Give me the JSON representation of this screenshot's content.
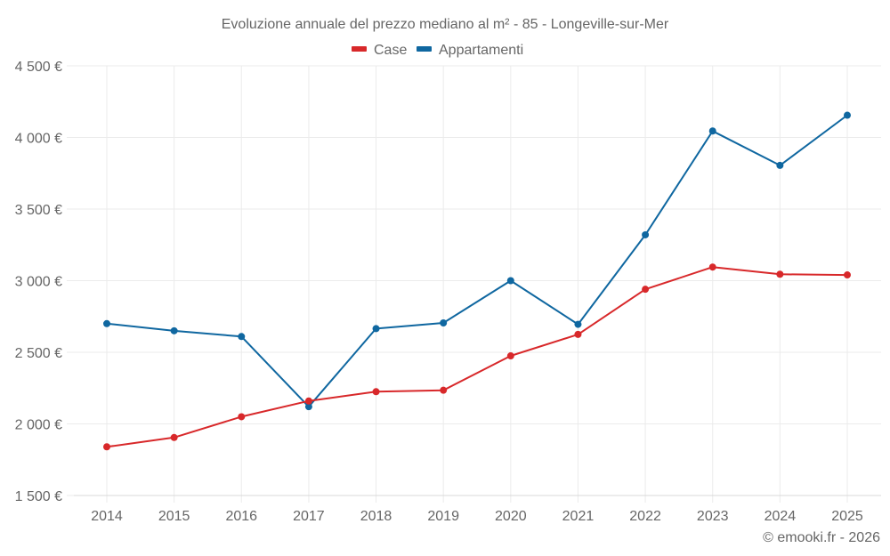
{
  "chart_data": {
    "type": "line",
    "title": "Evoluzione annuale del prezzo mediano al m² - 85 - Longeville-sur-Mer",
    "xlabel": "",
    "ylabel": "",
    "x": [
      2014,
      2015,
      2016,
      2017,
      2018,
      2019,
      2020,
      2021,
      2022,
      2023,
      2024,
      2025
    ],
    "x_tick_labels": [
      "2014",
      "2015",
      "2016",
      "2017",
      "2018",
      "2019",
      "2020",
      "2021",
      "2022",
      "2023",
      "2024",
      "2025"
    ],
    "ylim": [
      1500,
      4500
    ],
    "y_ticks": [
      1500,
      2000,
      2500,
      3000,
      3500,
      4000,
      4500
    ],
    "y_tick_labels": [
      "1 500 €",
      "2 000 €",
      "2 500 €",
      "3 000 €",
      "3 500 €",
      "4 000 €",
      "4 500 €"
    ],
    "grid": true,
    "legend_position": "top-center",
    "series": [
      {
        "name": "Appartamenti",
        "color": "#0f67a0",
        "values": [
          2700,
          2650,
          2610,
          2120,
          2665,
          2705,
          3000,
          2695,
          3320,
          4045,
          3805,
          4155
        ]
      },
      {
        "name": "Case",
        "color": "#d8282a",
        "values": [
          1840,
          1905,
          2050,
          2160,
          2225,
          2235,
          2475,
          2625,
          2940,
          3095,
          3045,
          3040
        ]
      }
    ],
    "legend": [
      {
        "name": "Case",
        "color": "#d8282a"
      },
      {
        "name": "Appartamenti",
        "color": "#0f67a0"
      }
    ],
    "credit": "© emooki.fr - 2026"
  }
}
